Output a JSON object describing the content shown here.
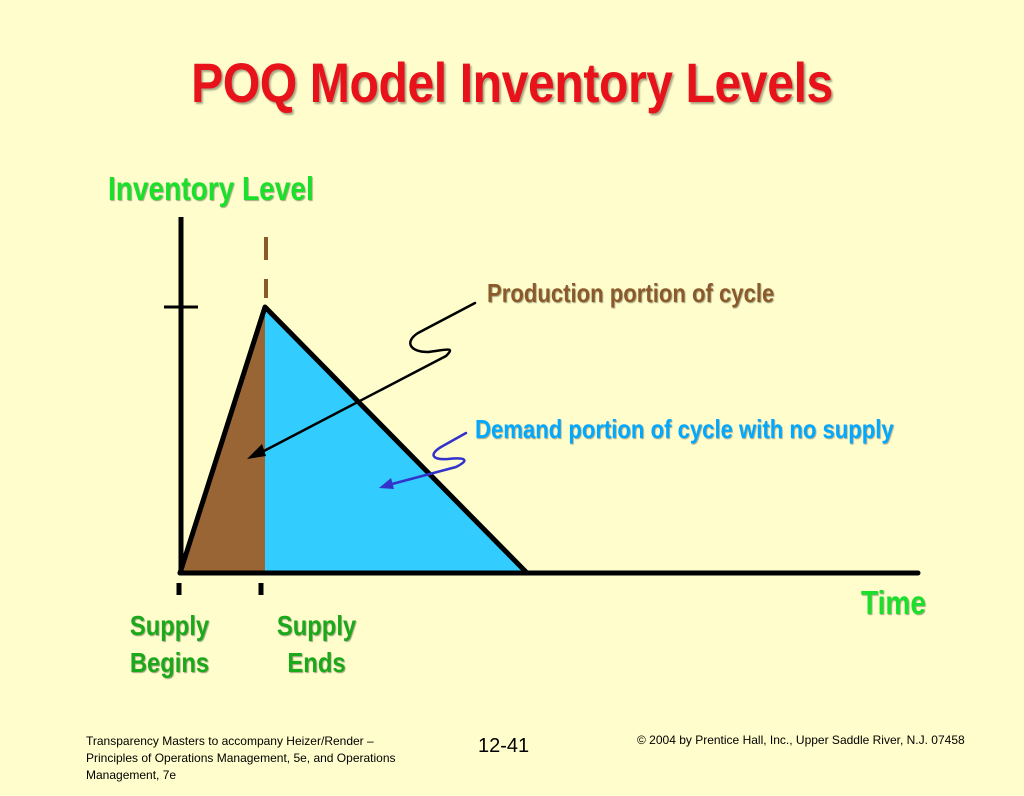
{
  "title": "POQ Model Inventory Levels",
  "axes": {
    "y_label": "Inventory Level",
    "x_label": "Time"
  },
  "annotations": {
    "production": "Production portion of cycle",
    "demand": "Demand portion of cycle with no supply"
  },
  "markers": {
    "supply_begins": "Supply Begins",
    "supply_ends": "Supply Ends"
  },
  "colors": {
    "background": "#FEFDCB",
    "title": "#E8121B",
    "axis_label": "#1BE02B",
    "marker_label": "#1BA81B",
    "production_region": "#9A6535",
    "demand_region": "#33CCFF",
    "production_text": "#8B5A2B",
    "demand_text": "#00A8FF",
    "demand_arrow": "#3333CC"
  },
  "footer": {
    "left": "Transparency Masters to accompany Heizer/Render – Principles of Operations Management, 5e, and Operations Management, 7e",
    "slide_number": "12-41",
    "copyright": "© 2004 by Prentice Hall, Inc.,  Upper Saddle River, N.J. 07458"
  }
}
